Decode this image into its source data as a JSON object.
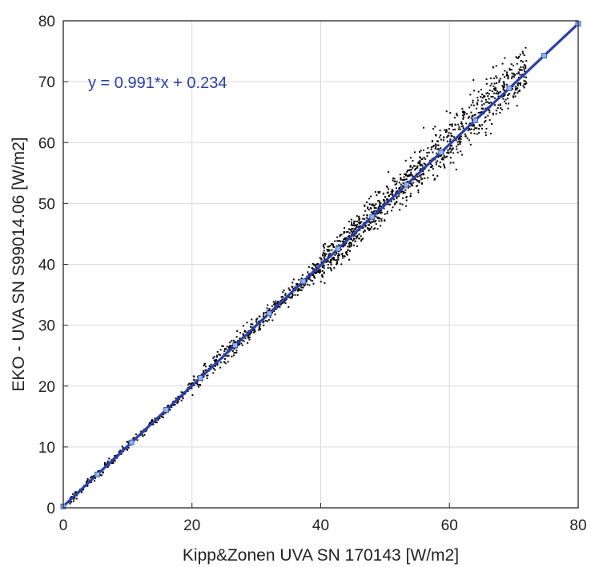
{
  "chart_data": {
    "type": "scatter",
    "title": "",
    "xlabel": "Kipp&Zonen UVA SN 170143 [W/m2]",
    "ylabel": "EKO - UVA SN S99014.06 [W/m2]",
    "xlim": [
      0,
      80
    ],
    "ylim": [
      0,
      80
    ],
    "x_ticks": [
      "0",
      "20",
      "40",
      "60",
      "80"
    ],
    "y_ticks": [
      "0",
      "10",
      "20",
      "30",
      "40",
      "50",
      "60",
      "70",
      "80"
    ],
    "grid": true,
    "annotation": "y = 0.991*x + 0.234",
    "fit": {
      "slope": 0.991,
      "intercept": 0.234,
      "x_range": [
        0,
        80
      ]
    },
    "fit_markers_x": [
      0,
      5.3,
      10.6,
      16,
      21.3,
      26.7,
      32,
      37.3,
      42.7,
      48,
      53.3,
      58.7,
      64,
      69.3,
      74.7,
      80
    ],
    "colors": {
      "fit_line": "#2b3ea8",
      "fit_marker": "#8fb6e6",
      "points": "#000000",
      "grid": "#d9d9d9"
    },
    "scatter_cloud": [
      {
        "x_range": [
          1,
          20
        ],
        "spread": 0.5,
        "count": 260
      },
      {
        "x_range": [
          20,
          40
        ],
        "spread": 1.1,
        "count": 420
      },
      {
        "x_range": [
          40,
          55
        ],
        "spread": 2.0,
        "count": 520
      },
      {
        "x_range": [
          55,
          72
        ],
        "spread": 2.6,
        "count": 520
      }
    ]
  }
}
